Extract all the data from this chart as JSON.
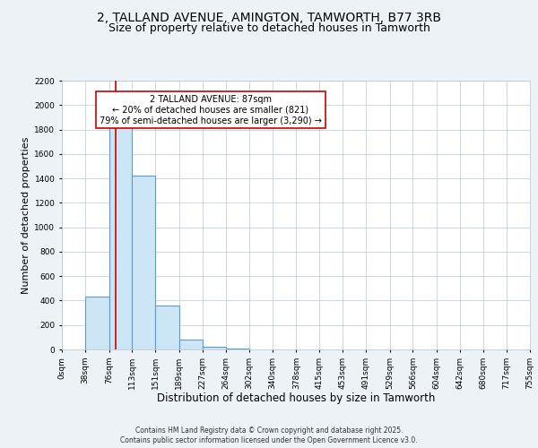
{
  "title_line1": "2, TALLAND AVENUE, AMINGTON, TAMWORTH, B77 3RB",
  "title_line2": "Size of property relative to detached houses in Tamworth",
  "xlabel": "Distribution of detached houses by size in Tamworth",
  "ylabel": "Number of detached properties",
  "bin_edges": [
    0,
    38,
    76,
    113,
    151,
    189,
    227,
    264,
    302,
    340,
    378,
    415,
    453,
    491,
    529,
    566,
    604,
    642,
    680,
    717,
    755
  ],
  "bar_heights": [
    0,
    430,
    1840,
    1420,
    360,
    80,
    25,
    5,
    0,
    0,
    0,
    0,
    0,
    0,
    0,
    0,
    0,
    0,
    0,
    0
  ],
  "bar_facecolor": "#cde6f5",
  "bar_edgecolor": "#5b9bd5",
  "property_size": 87,
  "vline_color": "#cc0000",
  "ylim": [
    0,
    2200
  ],
  "yticks": [
    0,
    200,
    400,
    600,
    800,
    1000,
    1200,
    1400,
    1600,
    1800,
    2000,
    2200
  ],
  "grid_color": "#b8c8d8",
  "background_color": "#edf2f7",
  "plot_bg_color": "#ffffff",
  "annotation_title": "2 TALLAND AVENUE: 87sqm",
  "annotation_line1": "← 20% of detached houses are smaller (821)",
  "annotation_line2": "79% of semi-detached houses are larger (3,290) →",
  "annotation_box_color": "#ffffff",
  "annotation_box_edgecolor": "#cc0000",
  "footnote1": "Contains HM Land Registry data © Crown copyright and database right 2025.",
  "footnote2": "Contains public sector information licensed under the Open Government Licence v3.0.",
  "title_fontsize": 10,
  "subtitle_fontsize": 9,
  "xlabel_fontsize": 8.5,
  "ylabel_fontsize": 8,
  "tick_fontsize": 6.5,
  "footnote_fontsize": 5.5
}
